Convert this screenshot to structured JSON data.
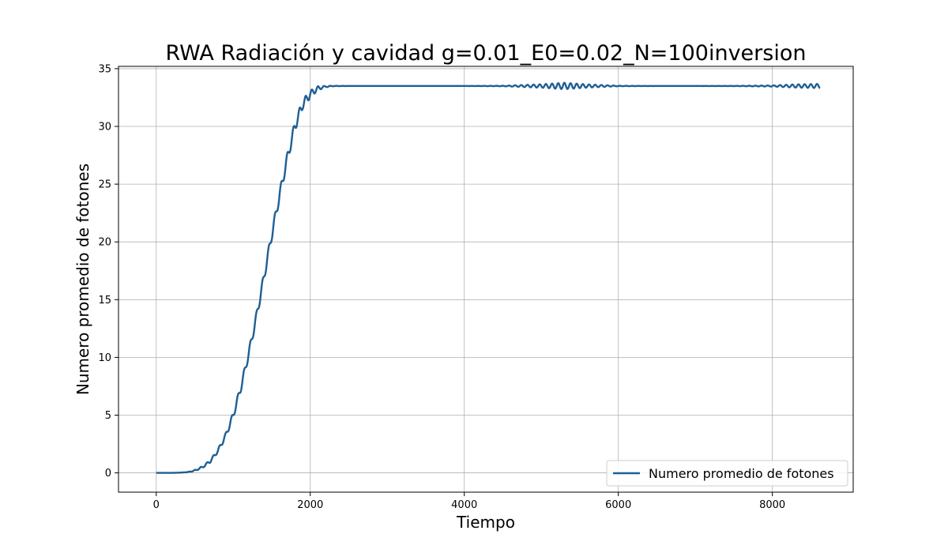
{
  "chart_data": {
    "type": "line",
    "title": "RWA Radiación y cavidad g=0.01_E0=0.02_N=100inversion",
    "xlabel": "Tiempo",
    "ylabel": "Numero promedio de fotones",
    "xlim": [
      -490,
      9050
    ],
    "ylim": [
      -1.67,
      35.2
    ],
    "xticks": [
      0,
      2000,
      4000,
      6000,
      8000
    ],
    "yticks": [
      0,
      5,
      10,
      15,
      20,
      25,
      30,
      35
    ],
    "grid": true,
    "legend_position": "lower-right",
    "series": [
      {
        "name": "Numero promedio de fotones",
        "color": "#1f5f94",
        "x": [
          0,
          100,
          200,
          300,
          400,
          500,
          600,
          700,
          800,
          900,
          1000,
          1100,
          1200,
          1300,
          1400,
          1500,
          1600,
          1700,
          1800,
          1900,
          2000,
          2100,
          2200,
          2300,
          2500,
          3000,
          3500,
          4000,
          4500,
          5000,
          5300,
          5600,
          6000,
          6500,
          7000,
          7500,
          8000,
          8300,
          8620
        ],
        "y": [
          0,
          0,
          0,
          0.02,
          0.06,
          0.2,
          0.5,
          1.0,
          1.9,
          3.2,
          5.0,
          7.4,
          10.3,
          13.5,
          17.0,
          20.6,
          24.0,
          27.2,
          30.0,
          31.9,
          32.8,
          33.3,
          33.45,
          33.5,
          33.5,
          33.5,
          33.5,
          33.5,
          33.5,
          33.5,
          33.5,
          33.5,
          33.5,
          33.5,
          33.5,
          33.5,
          33.5,
          33.5,
          33.5
        ],
        "oscillation_amplitude": [
          0,
          0,
          0,
          0,
          0,
          0.05,
          0.08,
          0.12,
          0.15,
          0.22,
          0.28,
          0.32,
          0.35,
          0.38,
          0.4,
          0.42,
          0.44,
          0.45,
          0.45,
          0.42,
          0.32,
          0.18,
          0.06,
          0.02,
          0,
          0,
          0,
          0,
          0.02,
          0.15,
          0.28,
          0.14,
          0.02,
          0,
          0,
          0.01,
          0.05,
          0.14,
          0.18
        ]
      }
    ]
  }
}
